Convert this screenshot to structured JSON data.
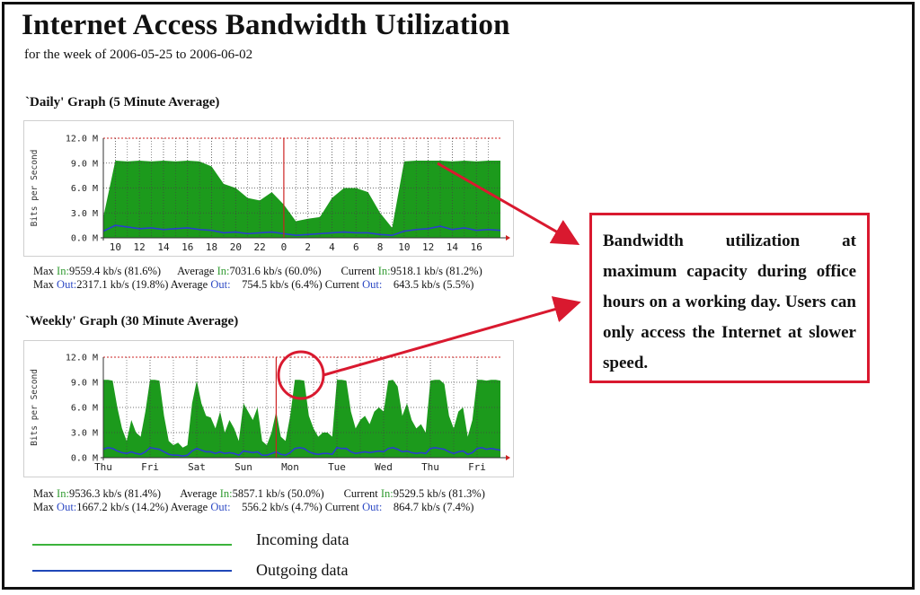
{
  "page": {
    "title": "Internet Access Bandwidth Utilization",
    "subtitle": "for the week of 2006-05-25 to 2006-06-02"
  },
  "callout": {
    "text": "Bandwidth utilization at maximum capacity during office hours on a working day.  Users can only access the Internet at slower speed."
  },
  "legend": {
    "incoming_label": "Incoming data",
    "outgoing_label": "Outgoing data",
    "incoming_color": "#3bb33b",
    "outgoing_color": "#1f47b8"
  },
  "colors": {
    "in_fill": "#1c9a1c",
    "out_line": "#2a3fcf",
    "max_line": "#cc2222",
    "callout_border": "#d9192f"
  },
  "daily": {
    "heading": "`Daily' Graph (5 Minute Average)",
    "stats": {
      "row1": {
        "max_label": "Max",
        "in_label": "In:",
        "max_value": "9559.4 kb/s (81.6%)",
        "avg_label": "Average",
        "avg_in_label": "In:",
        "avg_value": "7031.6 kb/s (60.0%)",
        "cur_label": "Current",
        "cur_in_label": "In:",
        "cur_value": "9518.1 kb/s (81.2%)"
      },
      "row2": {
        "max_label": "Max",
        "out_label": "Out:",
        "max_value": "2317.1 kb/s (19.8%)",
        "avg_label": "Average",
        "avg_out_label": "Out:",
        "avg_value": "754.5 kb/s (6.4%)",
        "cur_label": "Current",
        "cur_out_label": "Out:",
        "cur_value": "643.5 kb/s (5.5%)"
      }
    }
  },
  "weekly": {
    "heading": "`Weekly' Graph (30 Minute Average)",
    "stats": {
      "row1": {
        "max_label": "Max",
        "in_label": "In:",
        "max_value": "9536.3 kb/s (81.4%)",
        "avg_label": "Average",
        "avg_in_label": "In:",
        "avg_value": "5857.1 kb/s (50.0%)",
        "cur_label": "Current",
        "cur_in_label": "In:",
        "cur_value": "9529.5 kb/s (81.3%)"
      },
      "row2": {
        "max_label": "Max",
        "out_label": "Out:",
        "max_value": "1667.2 kb/s (14.2%)",
        "avg_label": "Average",
        "avg_out_label": "Out:",
        "avg_value": "556.2 kb/s (4.7%)",
        "cur_label": "Current",
        "cur_out_label": "Out:",
        "cur_value": "864.7 kb/s (7.4%)"
      }
    }
  },
  "chart_data": [
    {
      "type": "area",
      "title": "`Daily' Graph (5 Minute Average)",
      "ylabel": "Bits per Second",
      "xlabel": "",
      "yticks": [
        "0.0 M",
        "3.0 M",
        "6.0 M",
        "9.0 M",
        "12.0 M"
      ],
      "ylim": [
        0,
        12
      ],
      "x_ticks": [
        "10",
        "12",
        "14",
        "16",
        "18",
        "20",
        "22",
        "0",
        "2",
        "4",
        "6",
        "8",
        "10",
        "12",
        "14",
        "16"
      ],
      "grid": true,
      "x": [
        9,
        10,
        11,
        12,
        13,
        14,
        15,
        16,
        17,
        18,
        19,
        20,
        21,
        22,
        23,
        24,
        25,
        26,
        27,
        28,
        29,
        30,
        31,
        32,
        33,
        34,
        35,
        36,
        37,
        38,
        39,
        40,
        41,
        42
      ],
      "series": [
        {
          "name": "Incoming data",
          "values": [
            2.5,
            9.3,
            9.2,
            9.3,
            9.2,
            9.3,
            9.2,
            9.3,
            9.2,
            8.6,
            6.5,
            6.0,
            4.8,
            4.5,
            5.5,
            4.0,
            2.0,
            2.3,
            2.5,
            4.8,
            6.0,
            6.0,
            5.5,
            3.0,
            1.2,
            9.2,
            9.3,
            9.3,
            9.3,
            9.2,
            9.3,
            9.2,
            9.3,
            9.3
          ]
        },
        {
          "name": "Outgoing data",
          "values": [
            0.8,
            1.5,
            1.3,
            1.1,
            1.2,
            1.0,
            1.1,
            1.2,
            1.0,
            0.9,
            0.6,
            0.7,
            0.5,
            0.6,
            0.7,
            0.5,
            0.3,
            0.4,
            0.5,
            0.6,
            0.7,
            0.6,
            0.6,
            0.4,
            0.3,
            0.8,
            1.0,
            1.1,
            1.4,
            1.0,
            1.2,
            0.9,
            1.0,
            0.9
          ]
        }
      ]
    },
    {
      "type": "area",
      "title": "`Weekly' Graph (30 Minute Average)",
      "ylabel": "Bits per Second",
      "xlabel": "",
      "yticks": [
        "0.0 M",
        "3.0 M",
        "6.0 M",
        "9.0 M",
        "12.0 M"
      ],
      "ylim": [
        0,
        12
      ],
      "x_ticks": [
        "Thu",
        "Fri",
        "Sat",
        "Sun",
        "Mon",
        "Tue",
        "Wed",
        "Thu",
        "Fri"
      ],
      "grid": true,
      "x": [
        0,
        0.1,
        0.2,
        0.3,
        0.4,
        0.5,
        0.6,
        0.7,
        0.8,
        0.9,
        1.0,
        1.1,
        1.2,
        1.3,
        1.4,
        1.5,
        1.6,
        1.7,
        1.8,
        1.9,
        2.0,
        2.1,
        2.2,
        2.3,
        2.4,
        2.5,
        2.6,
        2.7,
        2.8,
        2.9,
        3.0,
        3.1,
        3.2,
        3.3,
        3.4,
        3.5,
        3.6,
        3.7,
        3.8,
        3.9,
        4.0,
        4.1,
        4.2,
        4.3,
        4.4,
        4.5,
        4.6,
        4.7,
        4.8,
        4.9,
        5.0,
        5.1,
        5.2,
        5.3,
        5.4,
        5.5,
        5.6,
        5.7,
        5.8,
        5.9,
        6.0,
        6.1,
        6.2,
        6.3,
        6.4,
        6.5,
        6.6,
        6.7,
        6.8,
        6.9,
        7.0,
        7.1,
        7.2,
        7.3,
        7.4,
        7.5,
        7.6,
        7.7,
        7.8,
        7.9,
        8.0,
        8.1,
        8.2,
        8.3,
        8.4,
        8.5
      ],
      "series": [
        {
          "name": "Incoming data",
          "values": [
            9.3,
            9.3,
            9.2,
            6.0,
            3.5,
            2.0,
            4.5,
            3.0,
            2.5,
            5.5,
            9.3,
            9.3,
            9.2,
            5.0,
            2.0,
            1.5,
            1.8,
            1.2,
            1.5,
            6.5,
            9.2,
            6.5,
            5.0,
            4.8,
            3.5,
            5.5,
            3.0,
            4.5,
            3.5,
            2.0,
            6.5,
            5.5,
            4.5,
            6.0,
            2.0,
            1.5,
            3.0,
            5.5,
            2.5,
            2.0,
            5.0,
            9.3,
            9.3,
            9.2,
            5.0,
            3.5,
            2.5,
            3.0,
            3.0,
            2.5,
            9.3,
            9.3,
            9.2,
            5.5,
            3.5,
            4.5,
            5.0,
            4.0,
            5.5,
            6.0,
            5.5,
            9.2,
            9.3,
            8.5,
            5.0,
            6.5,
            4.5,
            3.5,
            4.0,
            3.0,
            9.2,
            9.3,
            9.3,
            8.8,
            5.0,
            3.5,
            5.5,
            6.0,
            2.5,
            4.5,
            9.3,
            9.3,
            9.2,
            9.3,
            9.3,
            9.2
          ]
        },
        {
          "name": "Outgoing data",
          "values": [
            1.0,
            1.2,
            1.1,
            0.8,
            0.6,
            0.5,
            0.7,
            0.5,
            0.4,
            0.7,
            1.2,
            1.1,
            1.0,
            0.7,
            0.4,
            0.3,
            0.3,
            0.2,
            0.3,
            0.8,
            1.1,
            0.9,
            0.7,
            0.7,
            0.5,
            0.7,
            0.5,
            0.6,
            0.5,
            0.3,
            0.8,
            0.7,
            0.6,
            0.7,
            0.3,
            0.3,
            0.5,
            0.7,
            0.4,
            0.3,
            0.6,
            1.1,
            1.2,
            1.1,
            0.7,
            0.5,
            0.4,
            0.5,
            0.5,
            0.4,
            1.2,
            1.1,
            1.1,
            0.7,
            0.5,
            0.6,
            0.7,
            0.6,
            0.7,
            0.8,
            0.7,
            1.1,
            1.2,
            1.0,
            0.7,
            0.8,
            0.6,
            0.5,
            0.6,
            0.5,
            1.1,
            1.2,
            1.1,
            1.0,
            0.7,
            0.5,
            0.7,
            0.8,
            0.4,
            0.6,
            1.1,
            1.2,
            1.0,
            1.1,
            1.0,
            0.9
          ]
        }
      ]
    }
  ]
}
